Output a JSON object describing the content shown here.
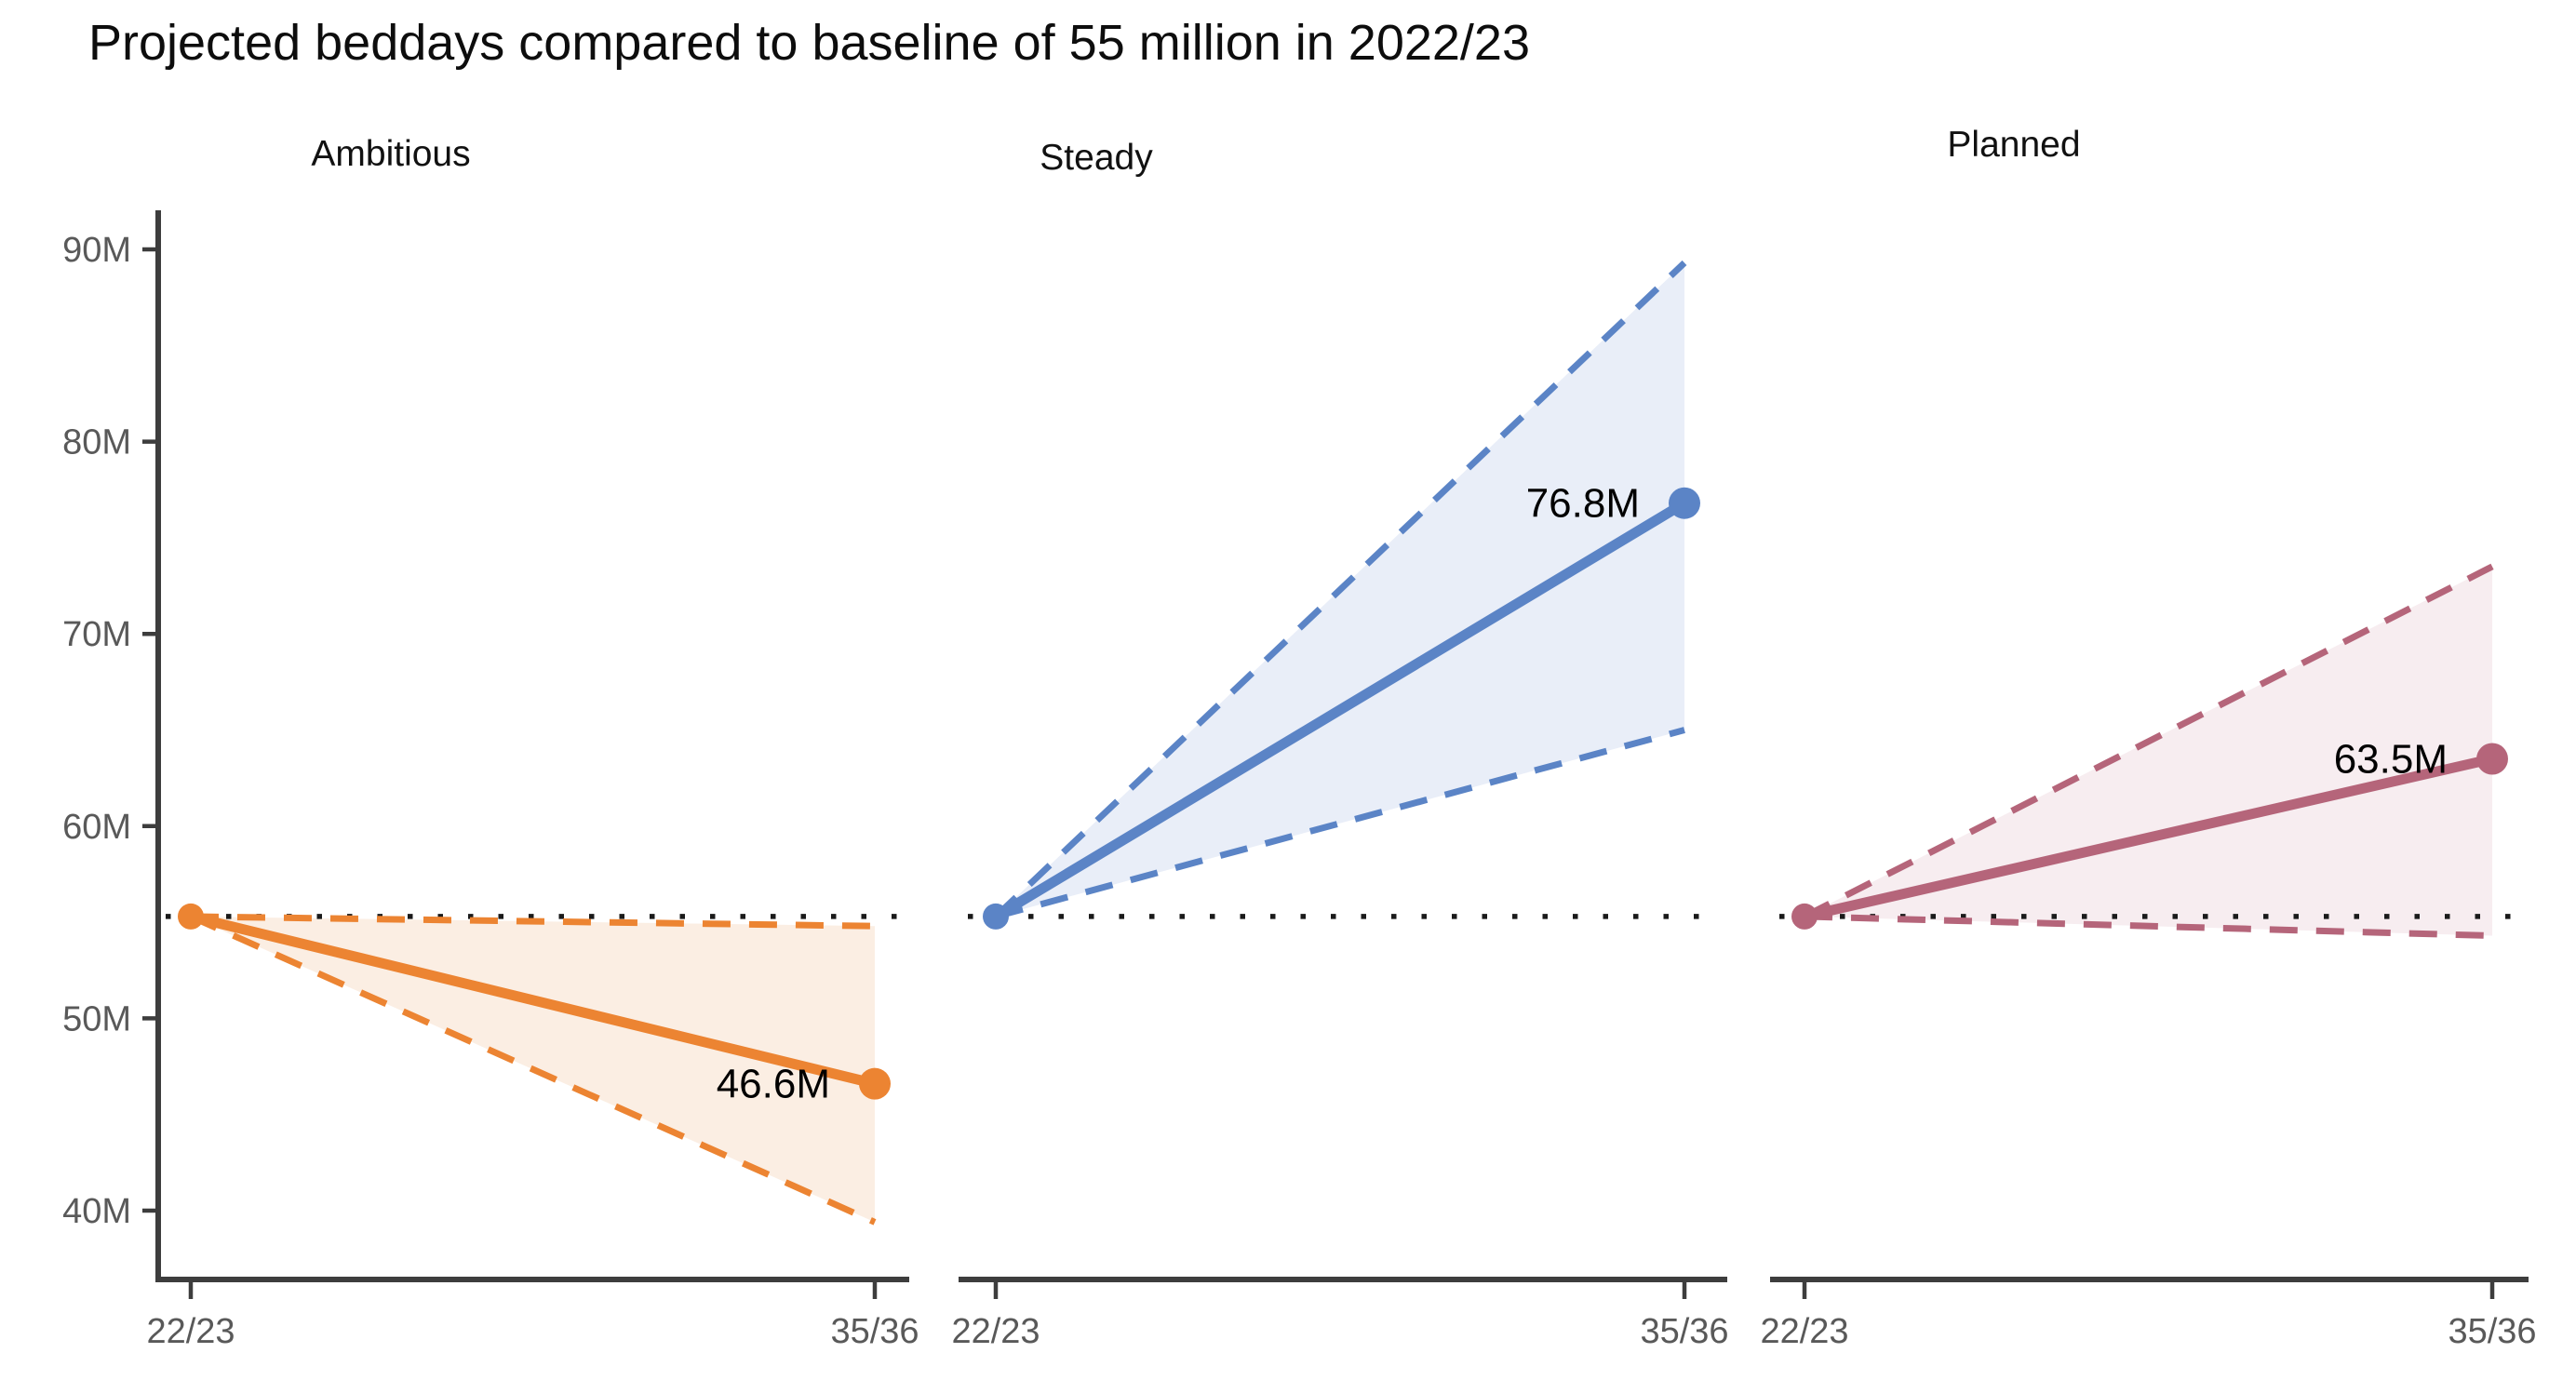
{
  "title": "Projected beddays compared to baseline of 55 million in 2022/23",
  "chart_data": {
    "type": "line",
    "title": "Projected beddays compared to baseline of 55 million in 2022/23",
    "x_ticks": [
      "22/23",
      "35/36"
    ],
    "y_ticks": [
      "40M",
      "50M",
      "60M",
      "70M",
      "80M",
      "90M"
    ],
    "y_tick_values": [
      40,
      50,
      60,
      70,
      80,
      90
    ],
    "ylim": [
      36.4,
      92.0
    ],
    "x_axis_years": [
      "2022/23",
      "2035/36"
    ],
    "baseline": {
      "value": 55.3,
      "description": "baseline of 55 million in 2022/23"
    },
    "grid": "off",
    "legend": "none",
    "panels": [
      {
        "name": "Ambitious",
        "start": 55.3,
        "end": 46.6,
        "end_label": "46.6M",
        "band_upper_end": 54.8,
        "band_lower_end": 39.4,
        "color": "#EC8432",
        "fill": "#FBEEE3"
      },
      {
        "name": "Steady",
        "start": 55.3,
        "end": 76.8,
        "end_label": "76.8M",
        "band_upper_end": 89.3,
        "band_lower_end": 65.0,
        "color": "#5B84C6",
        "fill": "#E9EEF8"
      },
      {
        "name": "Planned",
        "start": 55.3,
        "end": 63.5,
        "end_label": "63.5M",
        "band_upper_end": 73.5,
        "band_lower_end": 54.3,
        "color": "#B5657A",
        "fill": "#F7EDF0"
      }
    ],
    "colors": {
      "axis": "#3d3d3d",
      "tick_labels": "#595959",
      "baseline_dotted": "#1a1a1a",
      "value_labels": "#000000",
      "facet_labels": "#111111"
    }
  }
}
